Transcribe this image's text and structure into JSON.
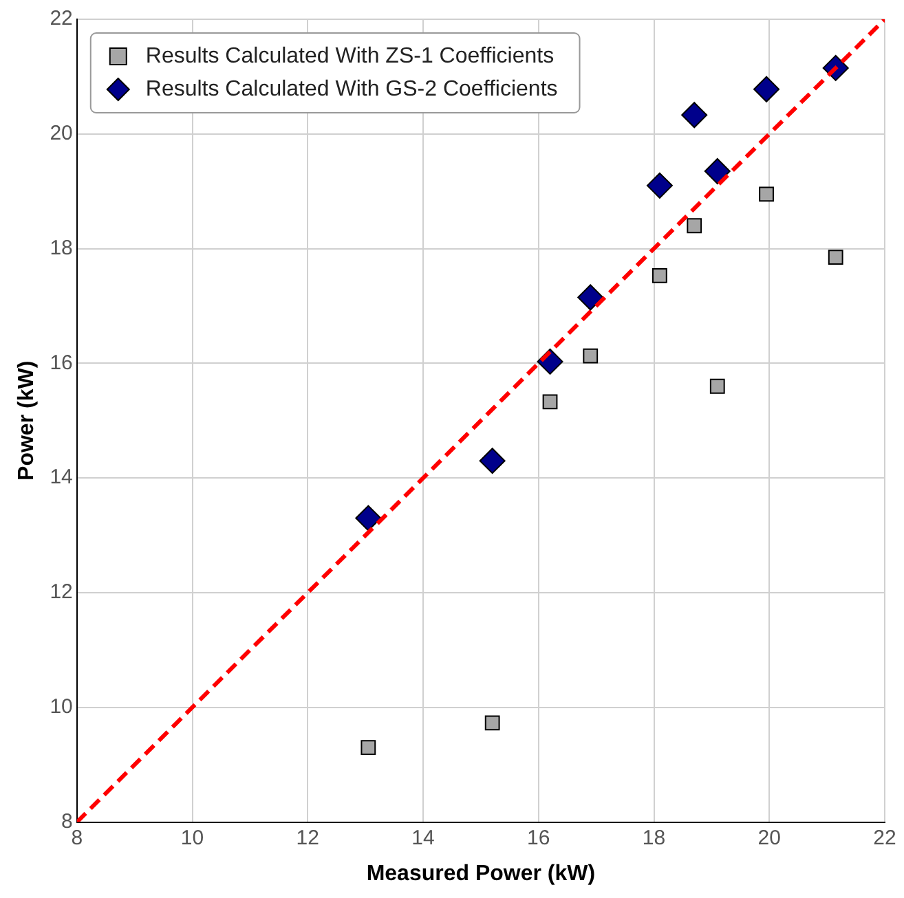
{
  "chart_data": {
    "type": "scatter",
    "xlabel": "Measured Power (kW)",
    "ylabel": "Power (kW)",
    "xlim": [
      8,
      22
    ],
    "xticks": [
      8,
      10,
      12,
      14,
      16,
      18,
      20,
      22
    ],
    "ylim": [
      8,
      22
    ],
    "yticks": [
      8,
      10,
      12,
      14,
      16,
      18,
      20,
      22
    ],
    "grid": true,
    "legend": "top left",
    "series": [
      {
        "type": "line",
        "x": [
          8,
          22
        ],
        "values": [
          8,
          22
        ],
        "color": "#ff0000",
        "line_style": "dashed",
        "marker": "none"
      },
      {
        "name": "Results Calculated With ZS-1 Coefficients",
        "type": "scatter",
        "marker": "square",
        "color": "#a6a6a6",
        "x": [
          13.05,
          15.2,
          16.2,
          16.9,
          18.1,
          18.7,
          19.1,
          19.95,
          21.15
        ],
        "values": [
          9.3,
          9.73,
          15.33,
          16.13,
          17.53,
          18.4,
          15.6,
          18.95,
          17.85
        ]
      },
      {
        "name": "Results Calculated With GS-2 Coefficients",
        "type": "scatter",
        "marker": "diamond",
        "color": "#00008b",
        "x": [
          13.05,
          15.2,
          16.2,
          16.9,
          18.1,
          18.7,
          19.1,
          19.95,
          21.15
        ],
        "values": [
          13.3,
          14.3,
          16.03,
          17.15,
          19.1,
          20.33,
          19.35,
          20.78,
          21.15
        ]
      }
    ]
  }
}
